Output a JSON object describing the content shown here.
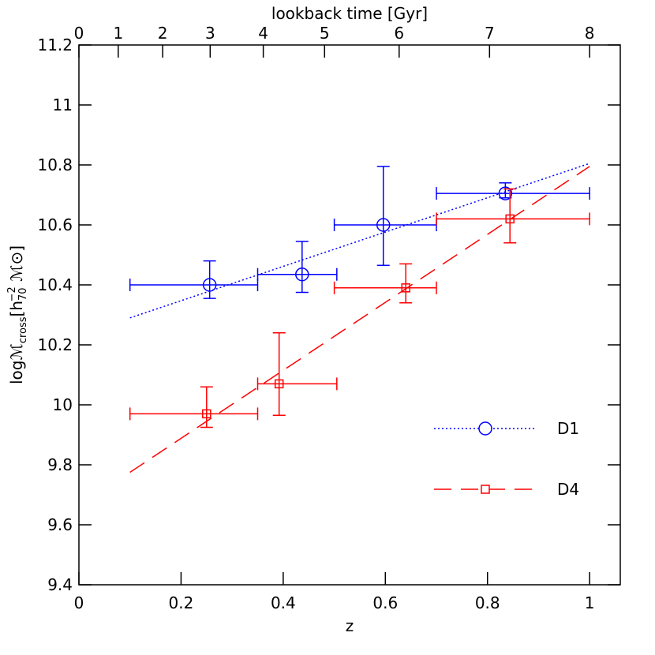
{
  "chart_data": {
    "type": "errorbar",
    "xlabel": "z",
    "x2label": "lookback time [Gyr]",
    "ylabel": {
      "main": "logℳ",
      "sub": "cross",
      "open": "[h",
      "sub2": "70",
      "sup": "−2",
      "close": " ℳ⊙]"
    },
    "xlim": [
      0,
      1.06
    ],
    "ylim": [
      9.4,
      11.2
    ],
    "xticks": [
      0,
      0.2,
      0.4,
      0.6,
      0.8,
      1
    ],
    "yticks": [
      9.4,
      9.6,
      9.8,
      10,
      10.2,
      10.4,
      10.6,
      10.8,
      11,
      11.2
    ],
    "x2ticks": [
      {
        "value": 0,
        "label": "0"
      },
      {
        "value": 0.077,
        "label": "1"
      },
      {
        "value": 0.164,
        "label": "2"
      },
      {
        "value": 0.257,
        "label": "3"
      },
      {
        "value": 0.361,
        "label": "4"
      },
      {
        "value": 0.481,
        "label": "5"
      },
      {
        "value": 0.627,
        "label": "6"
      },
      {
        "value": 0.804,
        "label": "7"
      },
      {
        "value": 1.0,
        "label": "8"
      }
    ],
    "legend": "lower right",
    "series": [
      {
        "name": "D1",
        "color": "#0000ff",
        "marker": "circle",
        "line": "dotted",
        "x": [
          0.256,
          0.437,
          0.596,
          0.835
        ],
        "values": [
          10.4,
          10.435,
          10.6,
          10.705
        ],
        "x_low": [
          0.1,
          0.35,
          0.5,
          0.7
        ],
        "x_high": [
          0.35,
          0.505,
          0.7,
          1.0
        ],
        "y_low": [
          10.355,
          10.375,
          10.465,
          10.69
        ],
        "y_high": [
          10.48,
          10.545,
          10.795,
          10.74
        ],
        "fit_x": [
          0.1,
          1.0
        ],
        "fit_y": [
          10.29,
          10.805
        ]
      },
      {
        "name": "D4",
        "color": "#ff0000",
        "marker": "square",
        "line": "dashed",
        "x": [
          0.25,
          0.392,
          0.64,
          0.844
        ],
        "values": [
          9.97,
          10.07,
          10.39,
          10.62
        ],
        "x_low": [
          0.1,
          0.35,
          0.5,
          0.7
        ],
        "x_high": [
          0.35,
          0.505,
          0.7,
          1.0
        ],
        "y_low": [
          9.925,
          9.965,
          10.34,
          10.54
        ],
        "y_high": [
          10.06,
          10.24,
          10.47,
          10.72
        ],
        "fit_x": [
          0.1,
          1.0
        ],
        "fit_y": [
          9.775,
          10.795
        ]
      }
    ]
  }
}
